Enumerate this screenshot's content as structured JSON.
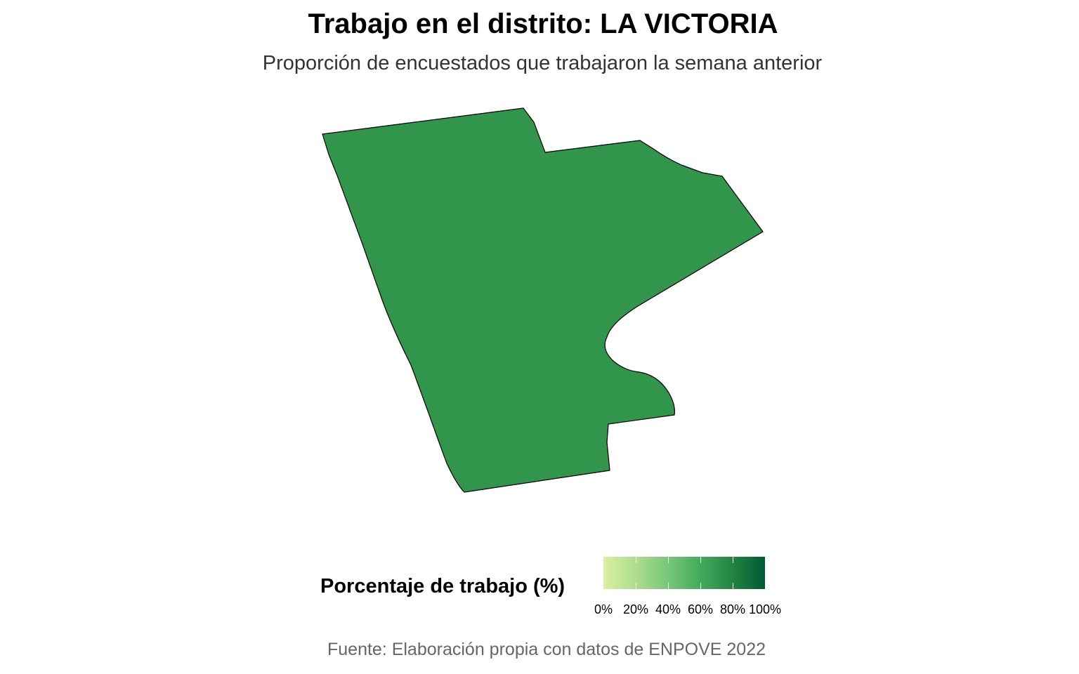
{
  "title": "Trabajo en el distrito: LA VICTORIA",
  "subtitle": "Proporción de encuestados que trabajaron la semana anterior",
  "caption": "Fuente: Elaboración propia con datos de ENPOVE 2022",
  "map": {
    "district": "LA VICTORIA",
    "region_name": "la-victoria-district",
    "fill_color": "#31954C",
    "stroke_color": "#000000"
  },
  "legend": {
    "title": "Porcentaje de trabajo (%)",
    "min": 0,
    "max": 100,
    "gradient_colors": [
      "#D9F0A3",
      "#ADDD8E",
      "#78C679",
      "#41AB5D",
      "#238443",
      "#005A32"
    ],
    "tick_values": [
      0,
      20,
      40,
      60,
      80,
      100
    ],
    "tick_labels": [
      "0%",
      "20%",
      "40%",
      "60%",
      "80%",
      "100%"
    ]
  }
}
